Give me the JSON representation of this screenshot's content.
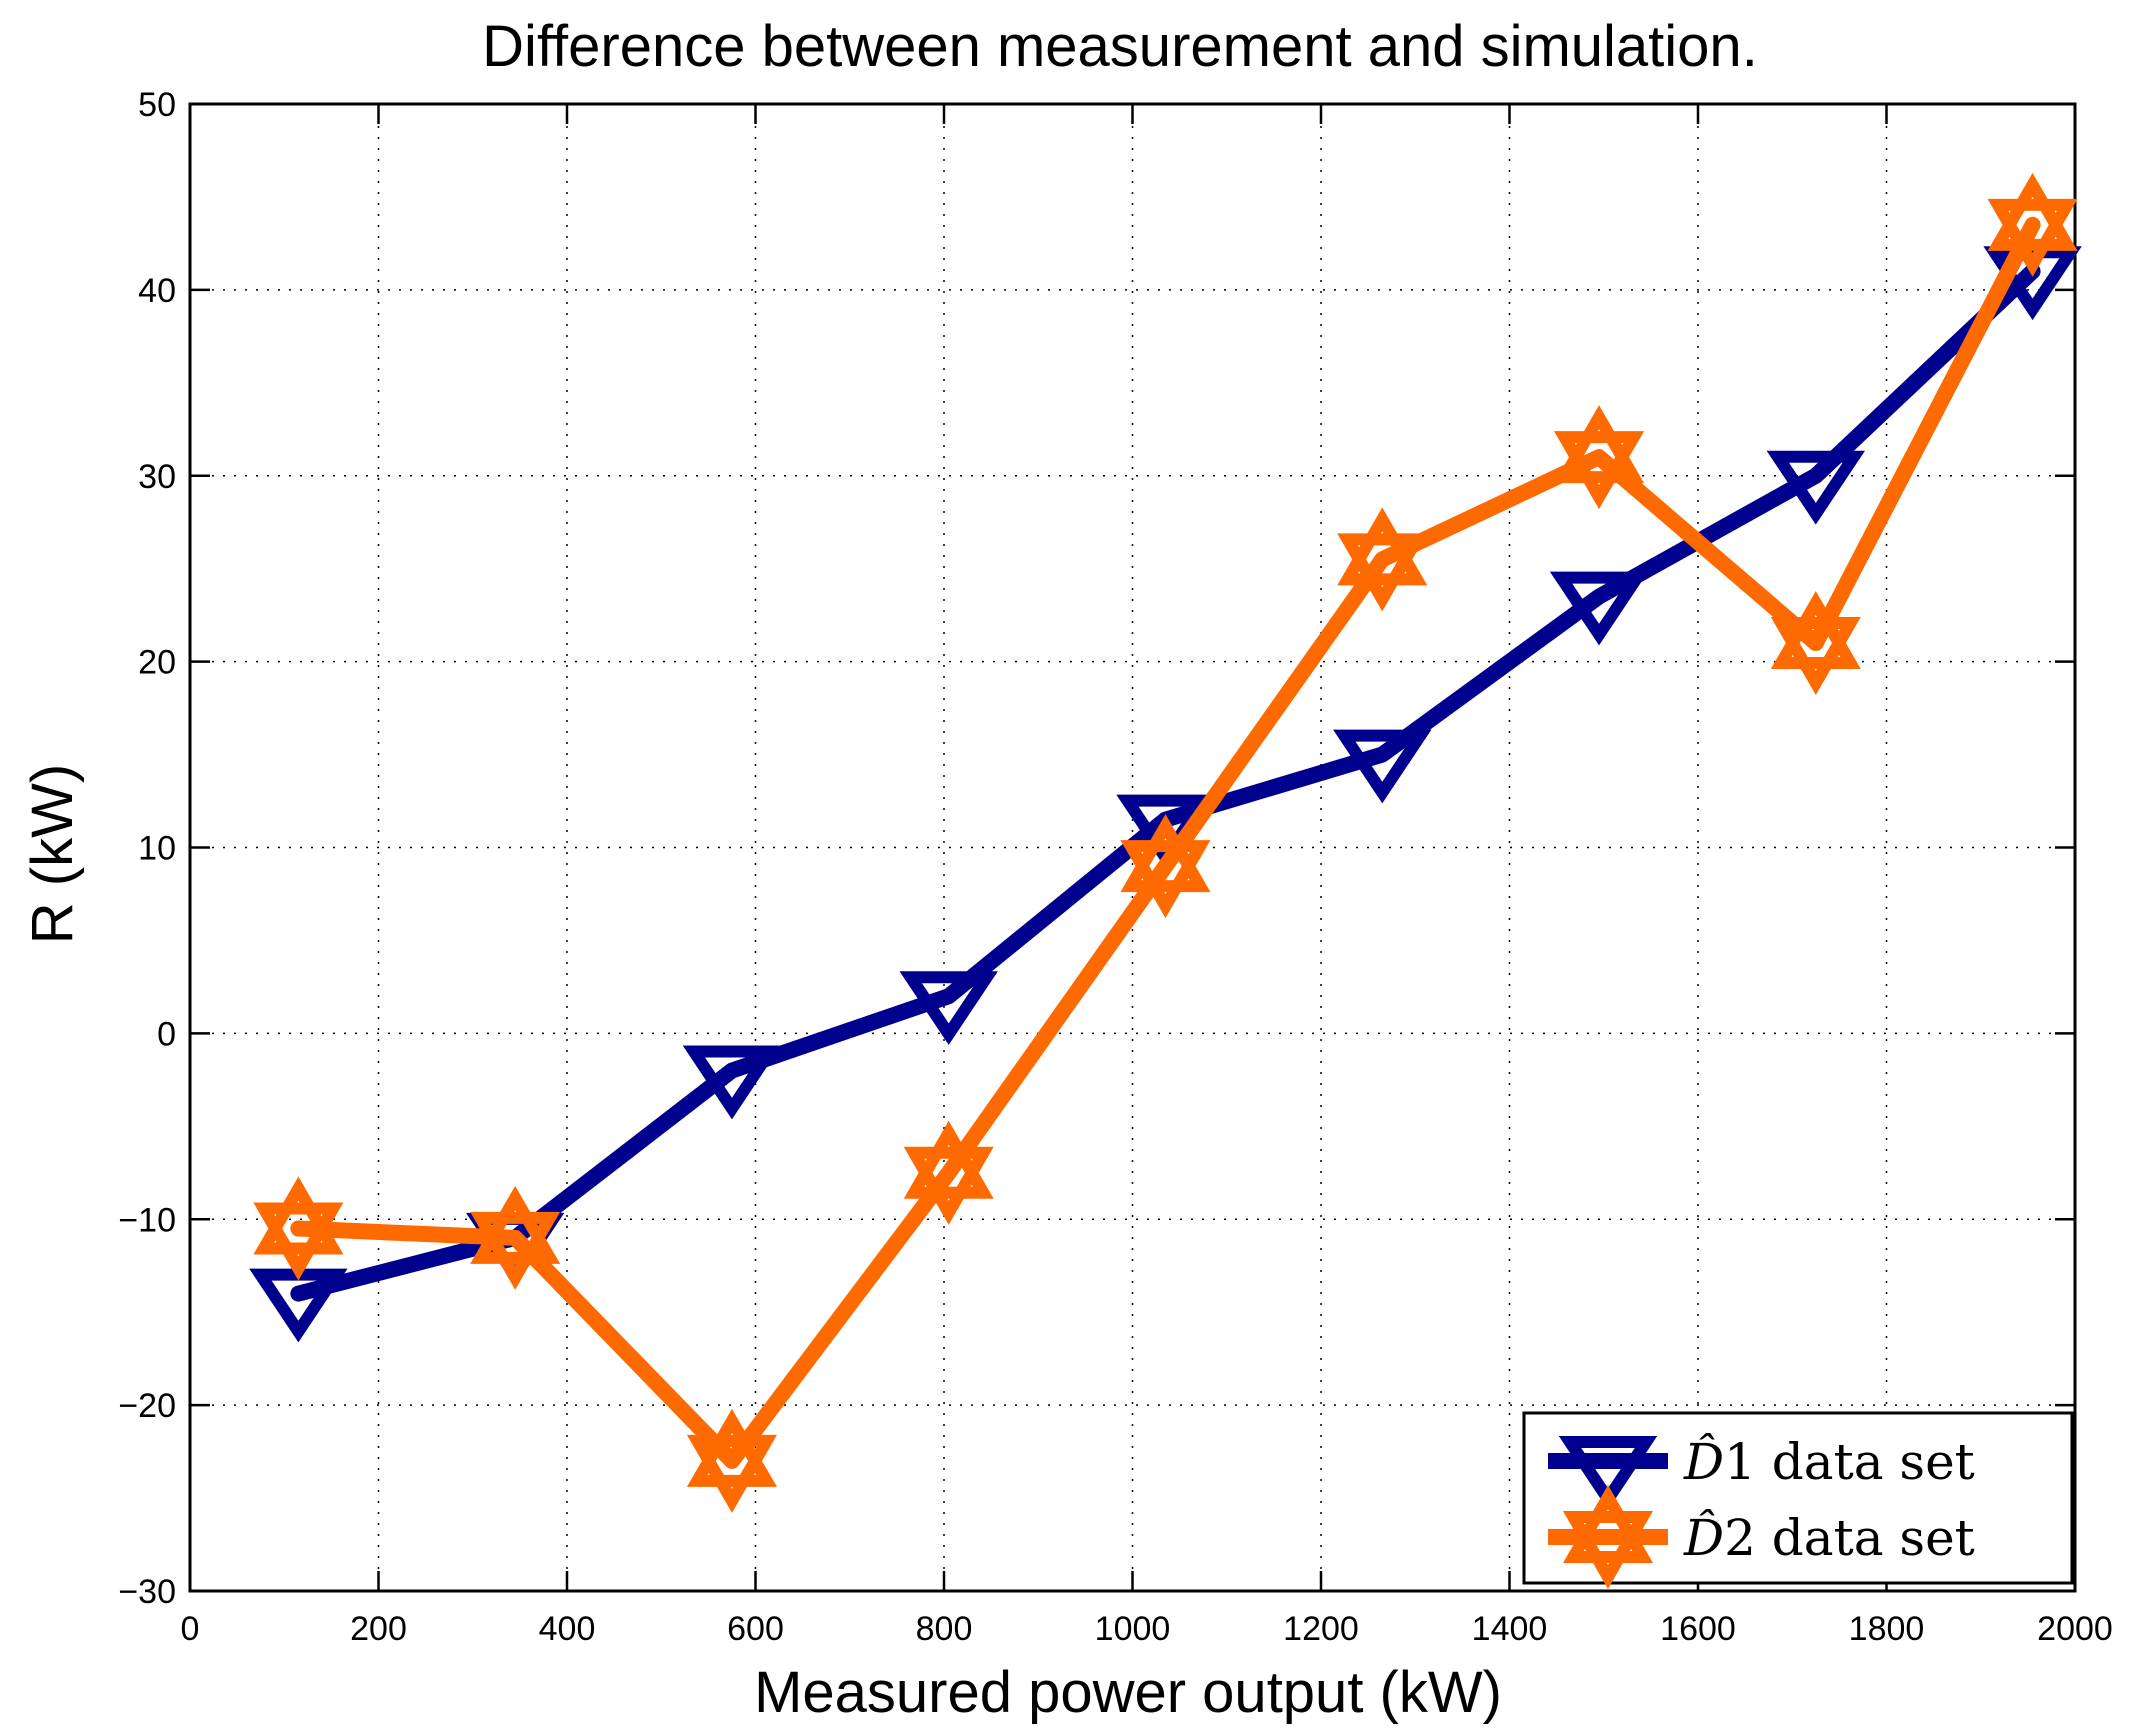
{
  "chart_data": {
    "type": "line",
    "title": "Difference between measurement and simulation.",
    "xlabel": "Measured power output (kW)",
    "ylabel": "R (kW)",
    "xlim": [
      0,
      2000
    ],
    "ylim": [
      -30,
      50
    ],
    "xticks": [
      0,
      200,
      400,
      600,
      800,
      1000,
      1200,
      1400,
      1600,
      1800,
      2000
    ],
    "yticks": [
      -30,
      -20,
      -10,
      0,
      10,
      20,
      30,
      40,
      50
    ],
    "xtick_labels": [
      "0",
      "200",
      "400",
      "600",
      "800",
      "1000",
      "1200",
      "1400",
      "1600",
      "1800",
      "2000"
    ],
    "ytick_labels": [
      "−30",
      "−20",
      "−10",
      "0",
      "10",
      "20",
      "30",
      "40",
      "50"
    ],
    "grid": true,
    "legend_position": "bottom-right",
    "series": [
      {
        "name": "D̂1 data set",
        "legend_symbol": "D",
        "legend_index": "1",
        "legend_suffix": "data set",
        "color": "#00008f",
        "marker": "triangle-down",
        "x": [
          115,
          345,
          575,
          805,
          1035,
          1265,
          1495,
          1725,
          1955
        ],
        "y": [
          -14,
          -11,
          -2,
          2,
          11.5,
          15,
          23.5,
          30,
          41
        ]
      },
      {
        "name": "D̂2 data set",
        "legend_symbol": "D",
        "legend_index": "2",
        "legend_suffix": "data set",
        "color": "#ff6a00",
        "marker": "hexagram",
        "x": [
          115,
          345,
          575,
          805,
          1035,
          1265,
          1495,
          1725,
          1955
        ],
        "y": [
          -10.5,
          -11,
          -23,
          -7.5,
          9,
          25.5,
          31,
          21,
          43.5
        ]
      }
    ]
  }
}
